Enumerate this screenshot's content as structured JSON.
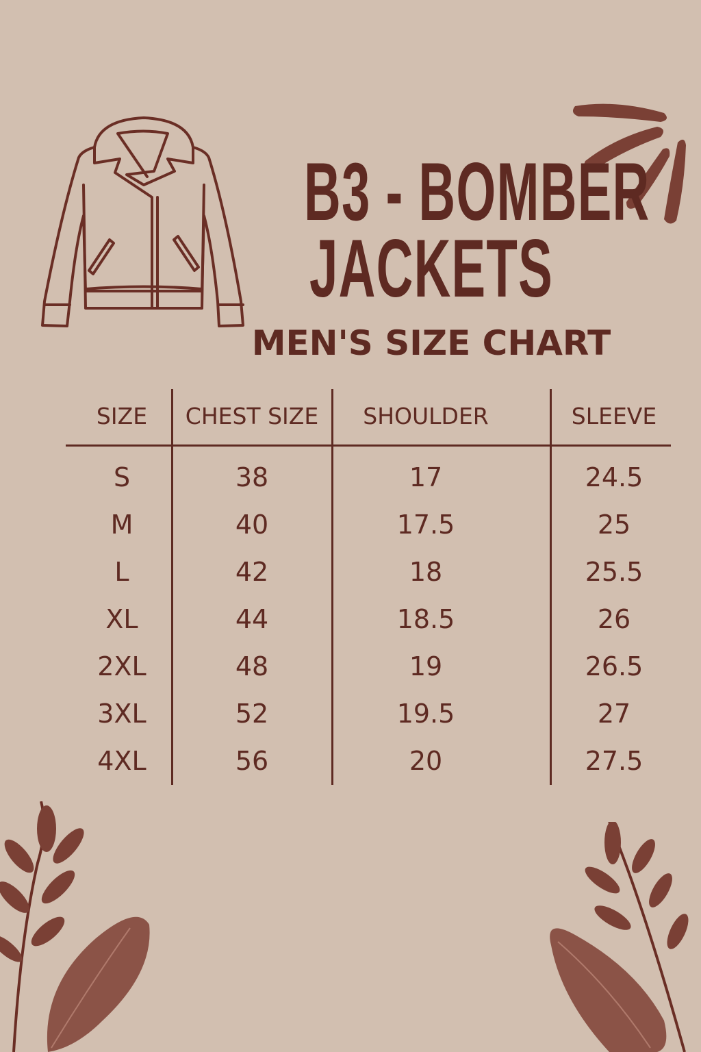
{
  "title_line1": "B3 - BOMBER",
  "title_line2": "JACKETS",
  "subtitle": "MEN'S SIZE CHART",
  "colors": {
    "background": "#d2bfb0",
    "text": "#5e2a22",
    "accent": "#7a4035"
  },
  "icons": [
    "jacket-outline-icon",
    "sun-rays-decoration",
    "leaf-branch-decoration"
  ],
  "table": {
    "headers": [
      "SIZE",
      "CHEST SIZE",
      "SHOULDER",
      "SLEEVE"
    ],
    "rows": [
      [
        "S",
        "38",
        "17",
        "24.5"
      ],
      [
        "M",
        "40",
        "17.5",
        "25"
      ],
      [
        "L",
        "42",
        "18",
        "25.5"
      ],
      [
        "XL",
        "44",
        "18.5",
        "26"
      ],
      [
        "2XL",
        "48",
        "19",
        "26.5"
      ],
      [
        "3XL",
        "52",
        "19.5",
        "27"
      ],
      [
        "4XL",
        "56",
        "20",
        "27.5"
      ]
    ]
  }
}
